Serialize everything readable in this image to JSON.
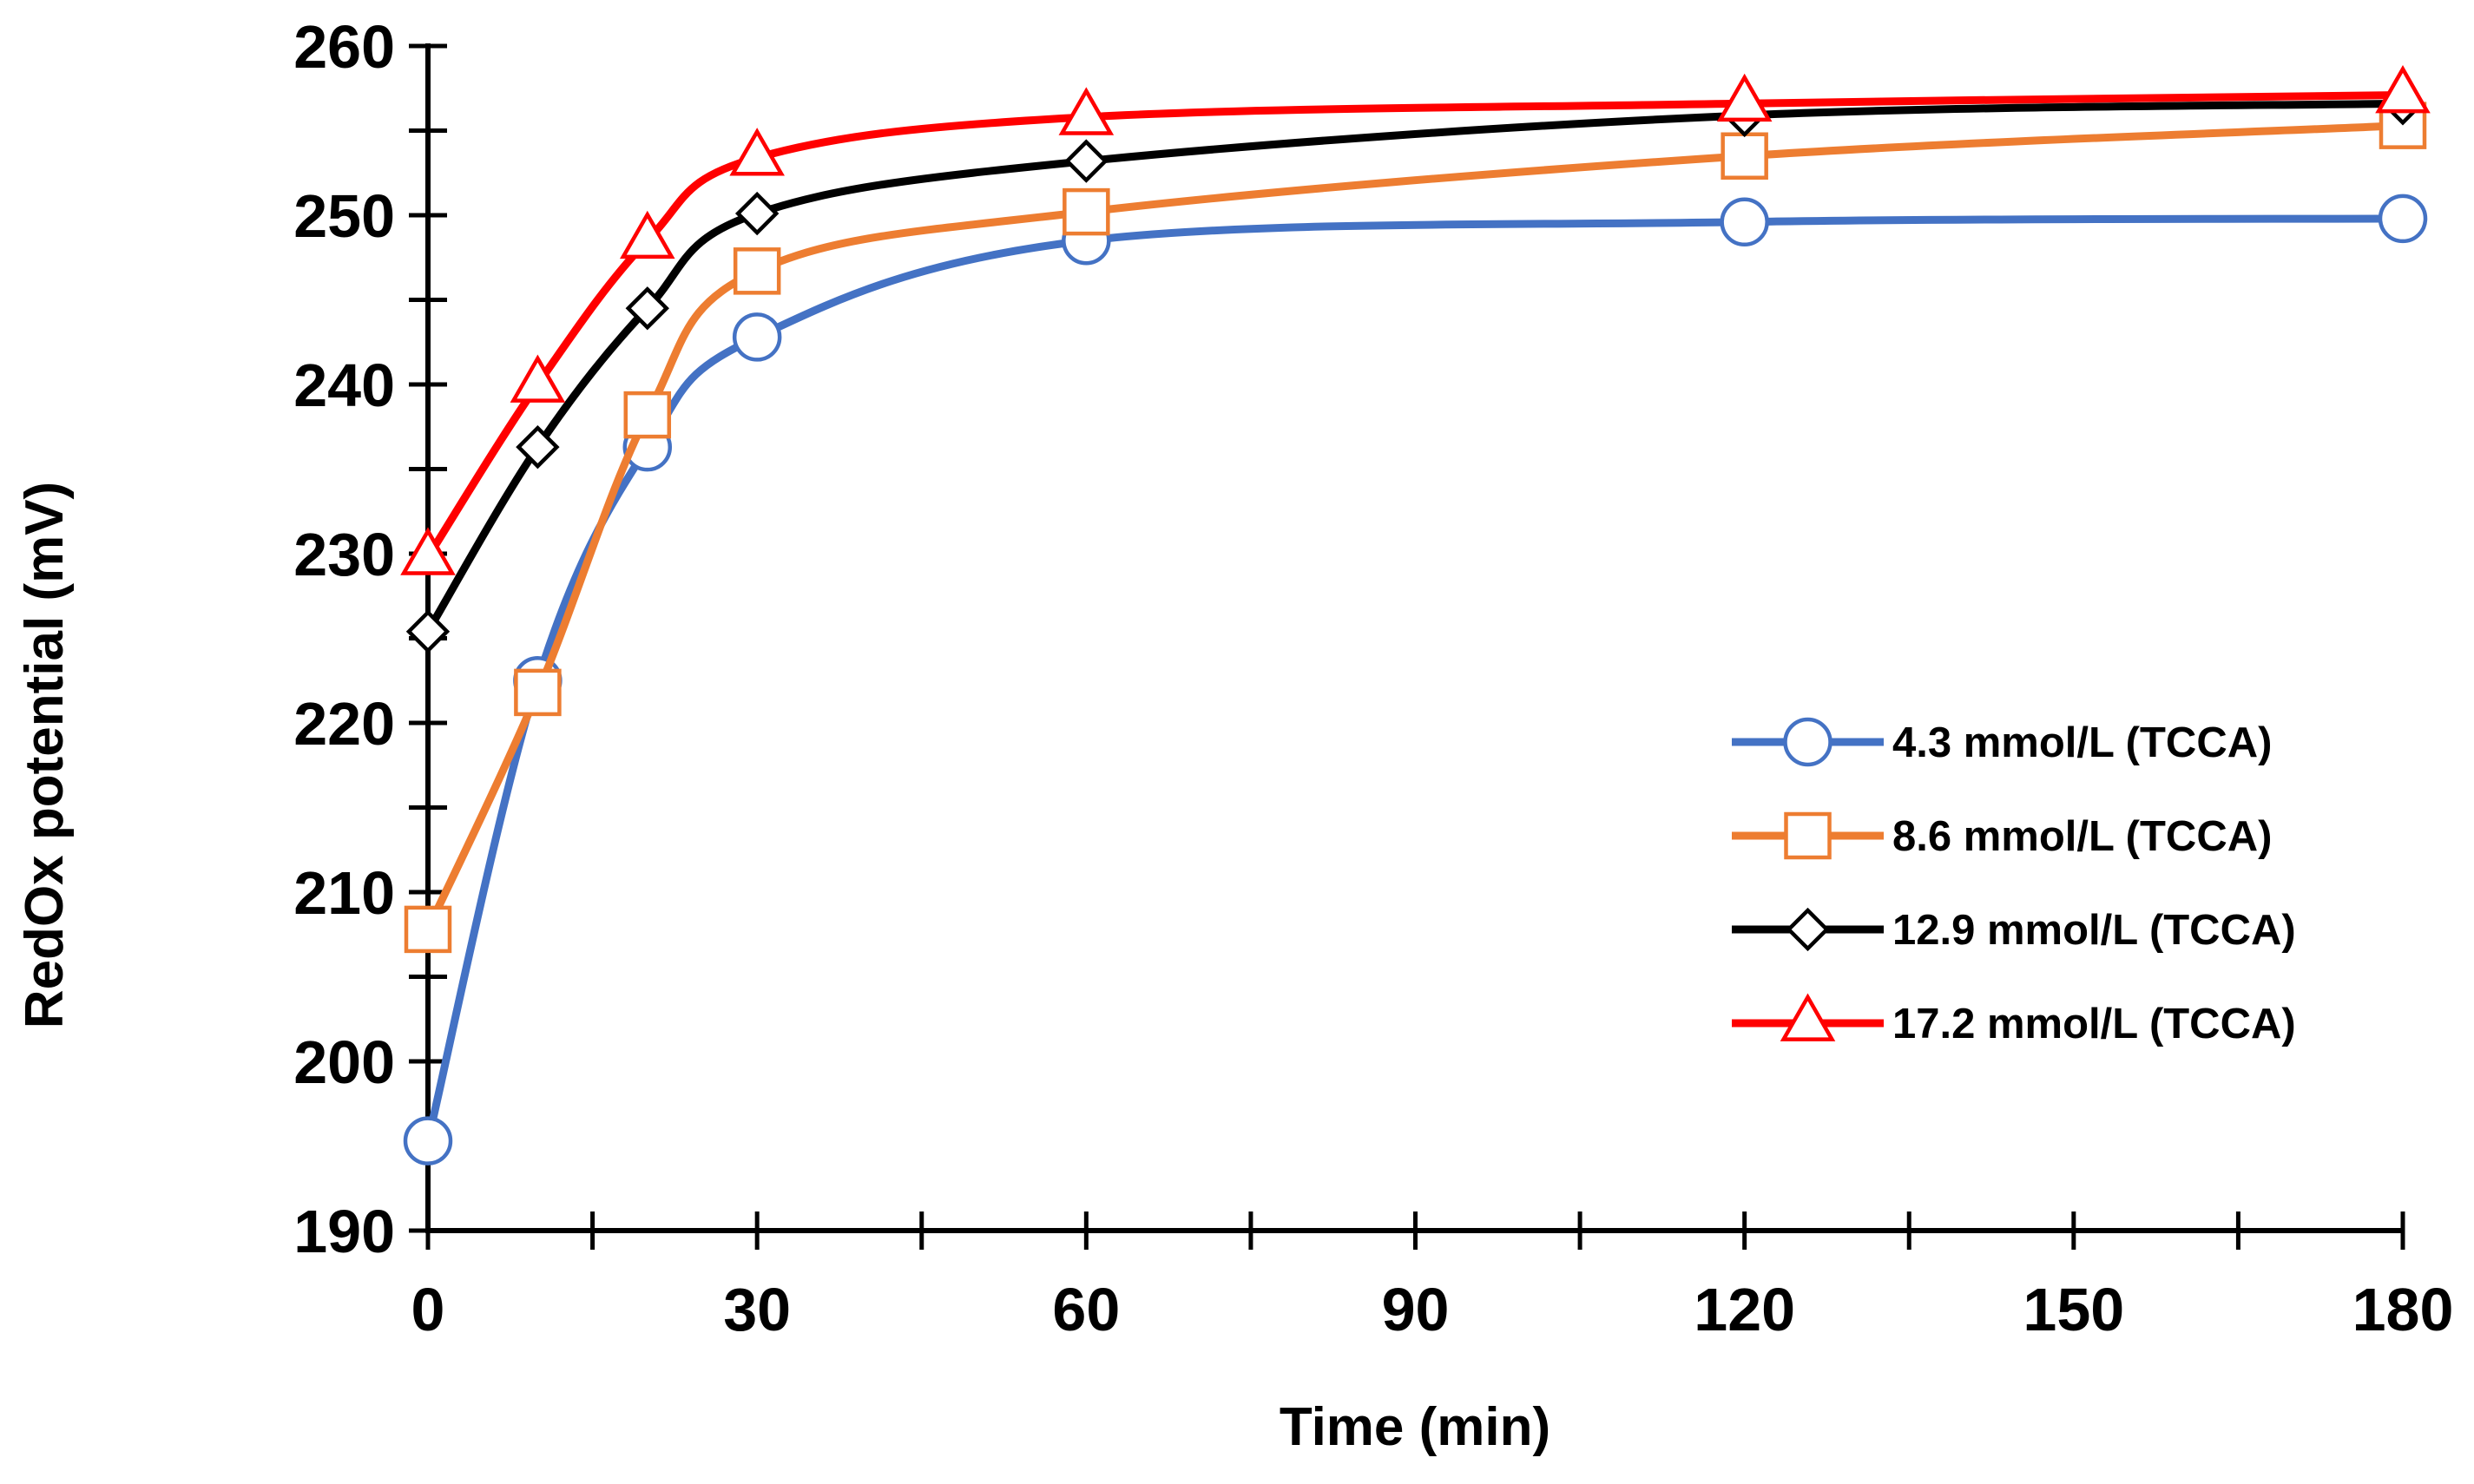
{
  "chart_data": {
    "type": "line",
    "smooth": true,
    "title": "",
    "xlabel": "Time (min)",
    "ylabel": "RedOx potential (mV)",
    "xlim": [
      0,
      180
    ],
    "ylim": [
      190,
      260
    ],
    "xticks": [
      0,
      30,
      60,
      90,
      120,
      150,
      180
    ],
    "xminor_step": 15,
    "yticks": [
      190,
      200,
      210,
      220,
      230,
      240,
      250,
      260
    ],
    "yminor_step": 5,
    "grid": false,
    "legend_position": "right",
    "x": [
      0,
      10,
      20,
      30,
      60,
      120,
      180
    ],
    "series": [
      {
        "name": "4.3 mmol/L (TCCA)",
        "color": "#4472C4",
        "marker": "circle",
        "values": [
          195.3,
          222.5,
          236.3,
          242.8,
          248.5,
          249.6,
          249.8
        ]
      },
      {
        "name": "8.6 mmol/L (TCCA)",
        "color": "#ED7D31",
        "marker": "square",
        "values": [
          207.8,
          221.8,
          238.2,
          246.7,
          250.2,
          253.5,
          255.3
        ]
      },
      {
        "name": "12.9 mmol/L (TCCA)",
        "color": "#000000",
        "marker": "diamond",
        "values": [
          225.4,
          236.3,
          244.5,
          250.1,
          253.2,
          255.9,
          256.6
        ]
      },
      {
        "name": "17.2 mmol/L (TCCA)",
        "color": "#FF0000",
        "marker": "triangle",
        "values": [
          229.8,
          240.0,
          248.5,
          253.4,
          255.8,
          256.6,
          257.1
        ]
      }
    ]
  }
}
